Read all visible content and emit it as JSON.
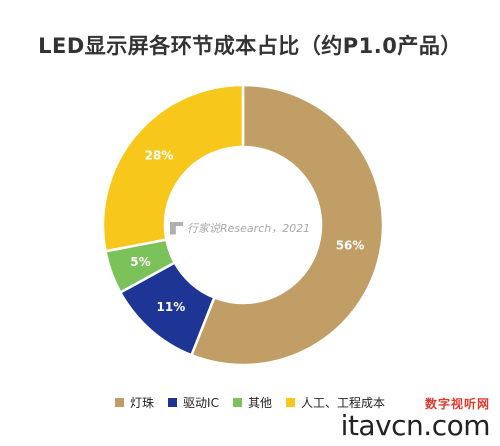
{
  "title": "LED显示屏各环节成本占比（约P1.0产品）",
  "chart_data": {
    "type": "pie",
    "donut": true,
    "slices": [
      {
        "label": "灯珠",
        "value": 56,
        "display": "56%",
        "color": "#C29E67"
      },
      {
        "label": "驱动IC",
        "value": 11,
        "display": "11%",
        "color": "#1F3596"
      },
      {
        "label": "其他",
        "value": 5,
        "display": "5%",
        "color": "#7CC25A"
      },
      {
        "label": "人工、工程成本",
        "value": 28,
        "display": "28%",
        "color": "#F7C81B"
      }
    ],
    "legend_position": "bottom"
  },
  "watermark": "行家说Research，2021",
  "brand": {
    "top": "数字视听网",
    "main": "itavcn.com"
  }
}
